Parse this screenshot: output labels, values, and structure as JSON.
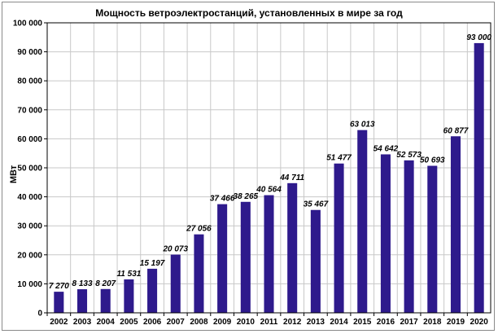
{
  "chart_data": {
    "type": "bar",
    "title": "Мощность ветроэлектростанций, установленных  в мире за год",
    "xlabel": "",
    "ylabel": "МВт",
    "ylim": [
      0,
      100000
    ],
    "yticks": [
      0,
      10000,
      20000,
      30000,
      40000,
      50000,
      60000,
      70000,
      80000,
      90000,
      100000
    ],
    "ytick_labels": [
      "0",
      "10 000",
      "20 000",
      "30 000",
      "40 000",
      "50 000",
      "60 000",
      "70 000",
      "80 000",
      "90 000",
      "100 000"
    ],
    "categories": [
      "2002",
      "2003",
      "2004",
      "2005",
      "2006",
      "2007",
      "2008",
      "2009",
      "2010",
      "2011",
      "2012",
      "2013",
      "2014",
      "2015",
      "2016",
      "2017",
      "2018",
      "2019",
      "2020"
    ],
    "values": [
      7270,
      8133,
      8207,
      11531,
      15197,
      20073,
      27056,
      37466,
      38265,
      40564,
      44711,
      35467,
      51477,
      63013,
      54642,
      52573,
      50693,
      60877,
      93000
    ],
    "data_labels": [
      "7 270",
      "8 133",
      "8 207",
      "11 531",
      "15 197",
      "20 073",
      "27 056",
      "37 466",
      "38 265",
      "40 564",
      "44 711",
      "35 467",
      "51 477",
      "63 013",
      "54 642",
      "52 573",
      "50 693",
      "60 877",
      "93 000"
    ],
    "grid": true,
    "legend": "none",
    "colors": {
      "bar": "#2e1a8c",
      "grid": "#c8c8c8",
      "axis": "#000000"
    }
  }
}
